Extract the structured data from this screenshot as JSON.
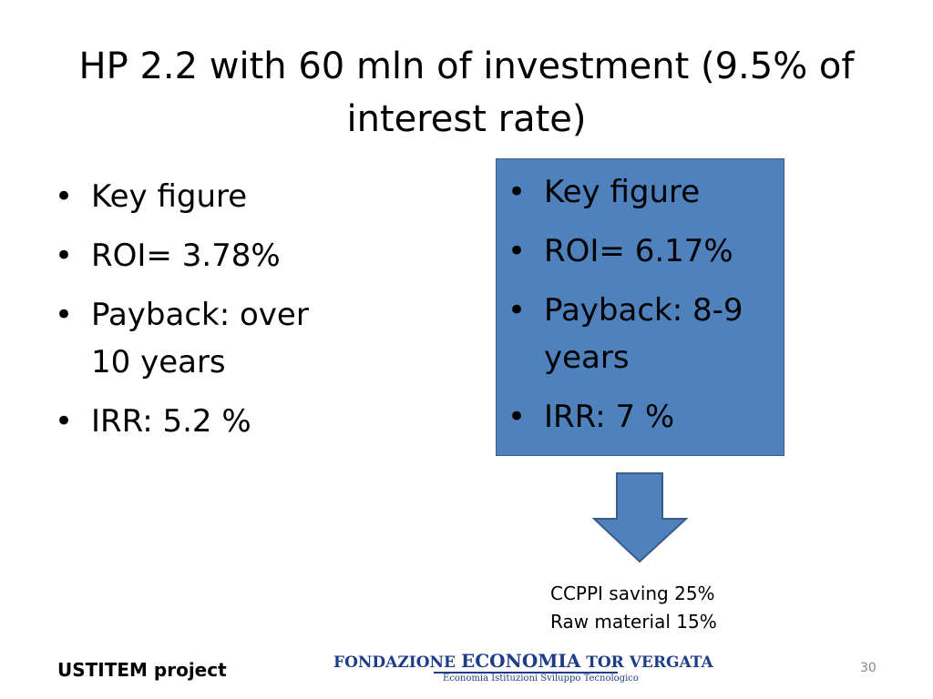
{
  "title": "HP 2.2 with 60 mln of investment (9.5% of interest rate)",
  "left_bullets": [
    "Key figure",
    "ROI= 3.78%",
    "Payback: over 10 years",
    "IRR: 5.2 %"
  ],
  "right_bullets": [
    "Key figure",
    "ROI= 6.17%",
    "Payback: 8-9 years",
    "IRR: 7 %"
  ],
  "notes": [
    "CCPPI saving 25%",
    "Raw material 15%"
  ],
  "footer": {
    "project": "USTITEM project",
    "logo_main_1": "FONDAZIONE",
    "logo_main_2": "ECONOMIA",
    "logo_main_3": "TOR VERGATA",
    "logo_sub": "Economia  Istituzioni  Sviluppo Tecnologico",
    "page": "30"
  }
}
